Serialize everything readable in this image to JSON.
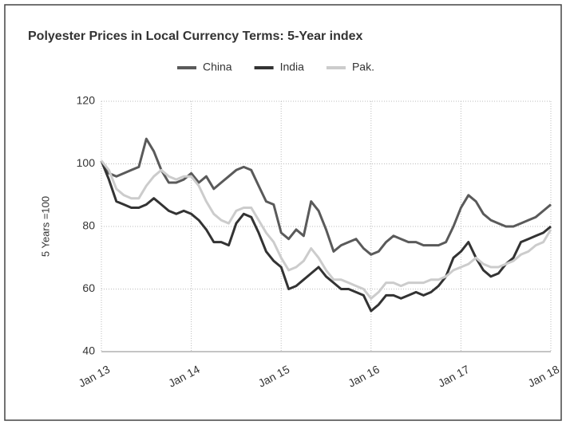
{
  "chart_data": {
    "type": "line",
    "title": "Polyester Prices in Local Currency Terms: 5-Year index",
    "ylabel": "5 Years =100",
    "categories": [
      "Jan 13",
      null,
      null,
      null,
      null,
      null,
      null,
      null,
      null,
      null,
      null,
      null,
      "Jan 14",
      null,
      null,
      null,
      null,
      null,
      null,
      null,
      null,
      null,
      null,
      null,
      "Jan 15",
      null,
      null,
      null,
      null,
      null,
      null,
      null,
      null,
      null,
      null,
      null,
      "Jan 16",
      null,
      null,
      null,
      null,
      null,
      null,
      null,
      null,
      null,
      null,
      null,
      "Jan 17",
      null,
      null,
      null,
      null,
      null,
      null,
      null,
      null,
      null,
      null,
      null,
      "Jan 18"
    ],
    "series": [
      {
        "name": "China",
        "color": "#5a5a5a",
        "values": [
          101,
          97,
          96,
          97,
          98,
          99,
          108,
          104,
          98,
          94,
          94,
          95,
          97,
          94,
          96,
          92,
          94,
          96,
          98,
          99,
          98,
          93,
          88,
          87,
          78,
          76,
          79,
          77,
          88,
          85,
          79,
          72,
          74,
          75,
          76,
          73,
          71,
          72,
          75,
          77,
          76,
          75,
          75,
          74,
          74,
          74,
          75,
          80,
          86,
          90,
          88,
          84,
          82,
          81,
          80,
          80,
          81,
          82,
          83,
          85,
          87
        ]
      },
      {
        "name": "India",
        "color": "#333333",
        "values": [
          101,
          95,
          88,
          87,
          86,
          86,
          87,
          89,
          87,
          85,
          84,
          85,
          84,
          82,
          79,
          75,
          75,
          74,
          81,
          84,
          83,
          78,
          72,
          69,
          67,
          60,
          61,
          63,
          65,
          67,
          64,
          62,
          60,
          60,
          59,
          58,
          53,
          55,
          58,
          58,
          57,
          58,
          59,
          58,
          59,
          61,
          64,
          70,
          72,
          75,
          70,
          66,
          64,
          65,
          68,
          70,
          75,
          76,
          77,
          78,
          80
        ]
      },
      {
        "name": "Pak.",
        "color": "#cccccc",
        "values": [
          101,
          98,
          92,
          90,
          89,
          89,
          93,
          96,
          98,
          96,
          95,
          96,
          96,
          93,
          88,
          84,
          82,
          81,
          85,
          86,
          86,
          82,
          78,
          75,
          70,
          66,
          67,
          69,
          73,
          70,
          66,
          63,
          63,
          62,
          61,
          60,
          57,
          59,
          62,
          62,
          61,
          62,
          62,
          62,
          63,
          63,
          64,
          66,
          67,
          68,
          70,
          68,
          67,
          67,
          68,
          69,
          71,
          72,
          74,
          75,
          79
        ]
      }
    ],
    "ylim": [
      40,
      120
    ],
    "yticks": [
      40,
      60,
      80,
      100,
      120
    ],
    "grid": true,
    "legend": "top"
  }
}
